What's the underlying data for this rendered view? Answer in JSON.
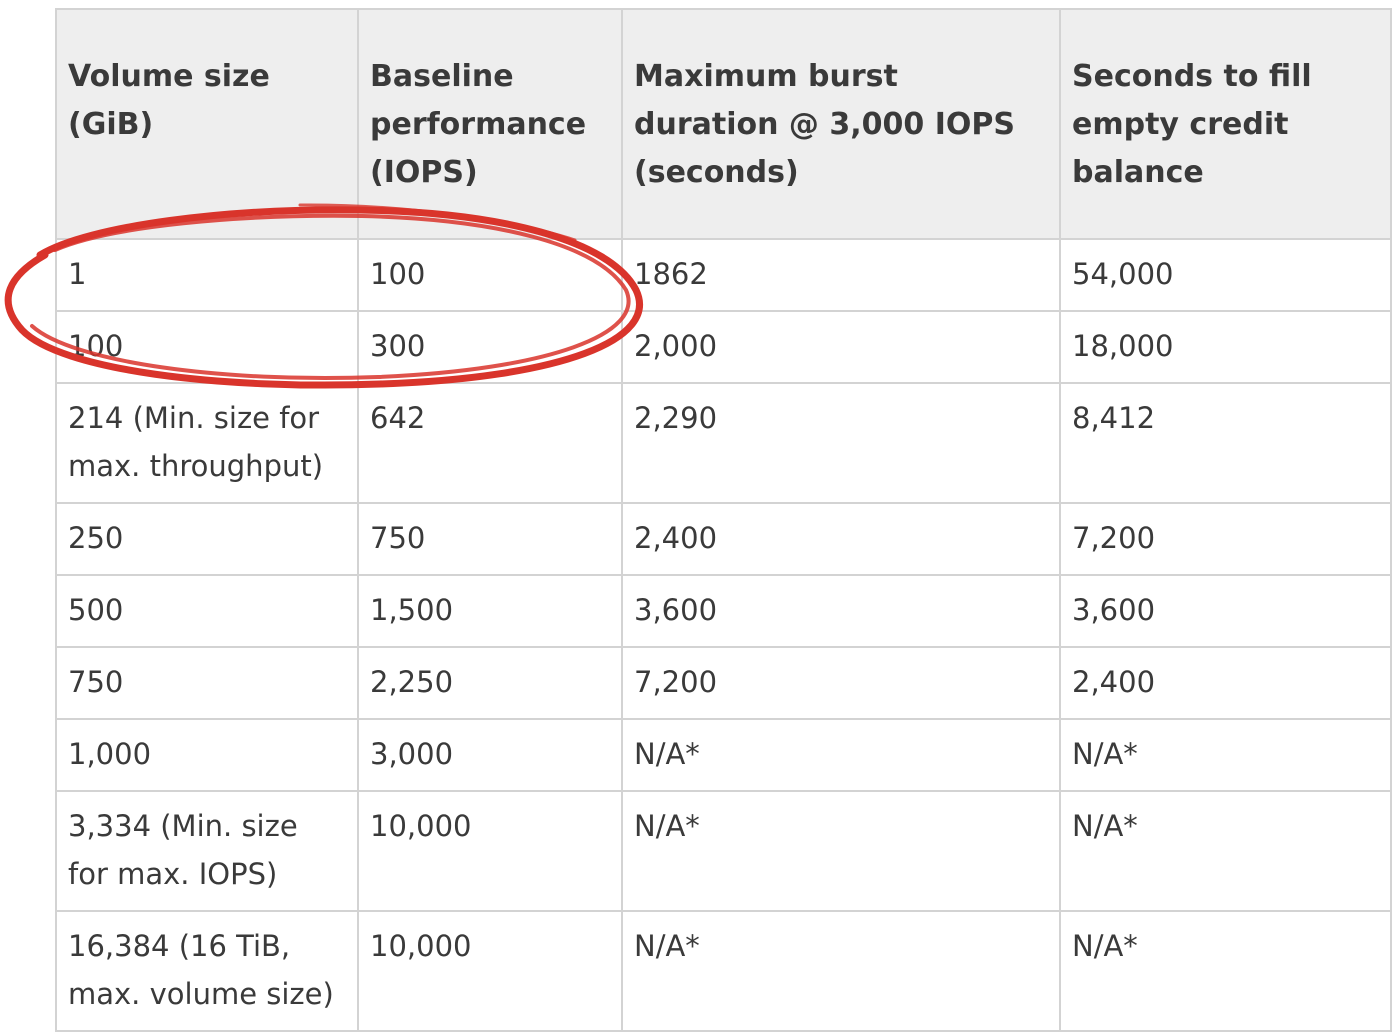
{
  "table": {
    "headers": [
      "Volume size (GiB)",
      "Baseline performance (IOPS)",
      "Maximum burst duration @ 3,000 IOPS (seconds)",
      "Seconds to fill empty credit balance"
    ],
    "rows": [
      [
        "1",
        "100",
        "1862",
        "54,000"
      ],
      [
        "100",
        "300",
        "2,000",
        "18,000"
      ],
      [
        "214 (Min. size for max. throughput)",
        "642",
        "2,290",
        "8,412"
      ],
      [
        "250",
        "750",
        "2,400",
        "7,200"
      ],
      [
        "500",
        "1,500",
        "3,600",
        "3,600"
      ],
      [
        "750",
        "2,250",
        "7,200",
        "2,400"
      ],
      [
        "1,000",
        "3,000",
        "N/A*",
        "N/A*"
      ],
      [
        "3,334 (Min. size for max. IOPS)",
        "10,000",
        "N/A*",
        "N/A*"
      ],
      [
        "16,384 (16 TiB, max. volume size)",
        "10,000",
        "N/A*",
        "N/A*"
      ]
    ]
  },
  "annotation": {
    "type": "hand-drawn-ellipse",
    "color": "#d9342b",
    "highlights_rows": [
      0,
      1
    ],
    "highlights_columns": [
      0,
      1
    ]
  }
}
